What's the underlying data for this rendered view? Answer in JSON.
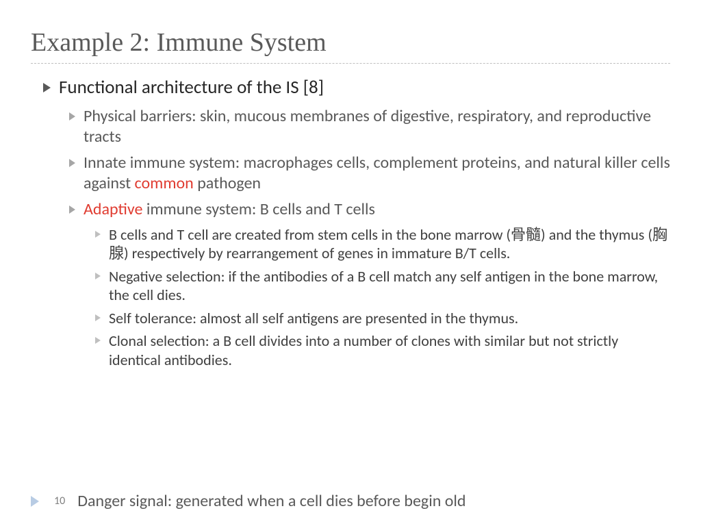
{
  "slide": {
    "title": "Example 2: Immune System",
    "page_number": "10",
    "colors": {
      "title": "#595959",
      "body_l1": "#262626",
      "body_l2": "#595959",
      "body_l3": "#404040",
      "highlight": "#e03c31",
      "bullet_l1": "#595959",
      "bullet_l2": "#a6a6a6",
      "bullet_l3": "#bfbfbf",
      "footer_triangle": "#b8cce4",
      "divider": "#bfbfbf",
      "background": "#ffffff"
    },
    "typography": {
      "title_family": "Georgia, serif",
      "body_family": "Gill Sans, Calibri, sans-serif",
      "title_size_pt": 28,
      "l1_size_pt": 20,
      "l2_size_pt": 18,
      "l3_size_pt": 16
    },
    "l1": {
      "text": "Functional architecture of the IS [8]"
    },
    "l2_items": [
      {
        "pre": "Physical barriers: skin, mucous membranes of digestive, respiratory, and reproductive tracts",
        "hl": "",
        "post": ""
      },
      {
        "pre": "Innate immune system: macrophages cells, complement proteins, and natural killer cells against ",
        "hl": "common",
        "post": " pathogen"
      },
      {
        "pre": "",
        "hl": "Adaptive",
        "post": " immune system: B cells and T cells"
      }
    ],
    "l3_items": [
      "B cells and T cell are created from stem cells in the bone marrow (骨髓) and the thymus (胸腺) respectively by rearrangement of genes in immature B/T cells.",
      "Negative selection: if the antibodies of a B cell match any self antigen in the bone marrow, the cell dies.",
      "Self tolerance: almost all self antigens are presented in the thymus.",
      "Clonal selection: a B cell divides into a number of clones with similar but not strictly identical antibodies."
    ],
    "footer_line": "Danger signal: generated when a cell dies before begin old"
  }
}
